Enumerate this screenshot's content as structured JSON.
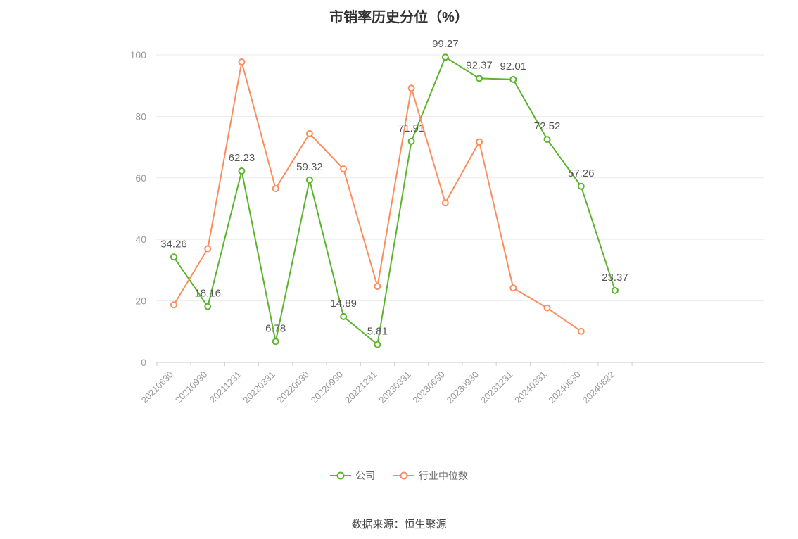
{
  "chart_data": {
    "type": "line",
    "title": "市销率历史分位（%）",
    "categories": [
      "20210630",
      "20210930",
      "20211231",
      "20220331",
      "20220630",
      "20220930",
      "20221231",
      "20230331",
      "20230630",
      "20230930",
      "20231231",
      "20240331",
      "20240630",
      "20240822"
    ],
    "series": [
      {
        "name": "公司",
        "color": "#5cb32e",
        "show_labels": true,
        "values": [
          34.26,
          18.16,
          62.23,
          6.78,
          59.32,
          14.89,
          5.81,
          71.91,
          99.27,
          92.37,
          92.01,
          72.52,
          57.26,
          23.37
        ]
      },
      {
        "name": "行业中位数",
        "color": "#fa8d5d",
        "show_labels": false,
        "values": [
          18.7,
          37.0,
          97.7,
          56.5,
          74.4,
          62.9,
          24.7,
          89.2,
          51.9,
          71.7,
          24.2,
          17.7,
          10.1,
          null
        ]
      }
    ],
    "ylim": [
      0,
      100
    ],
    "y_ticks": [
      0,
      20,
      40,
      60,
      80,
      100
    ],
    "grid": true,
    "legend_position": "bottom",
    "colors": {
      "grid_line": "#ebebeb",
      "axis_line": "#cccccc",
      "tick_label": "#999999",
      "data_label": "#555555"
    }
  },
  "footer": {
    "source": "数据来源：恒生聚源"
  }
}
